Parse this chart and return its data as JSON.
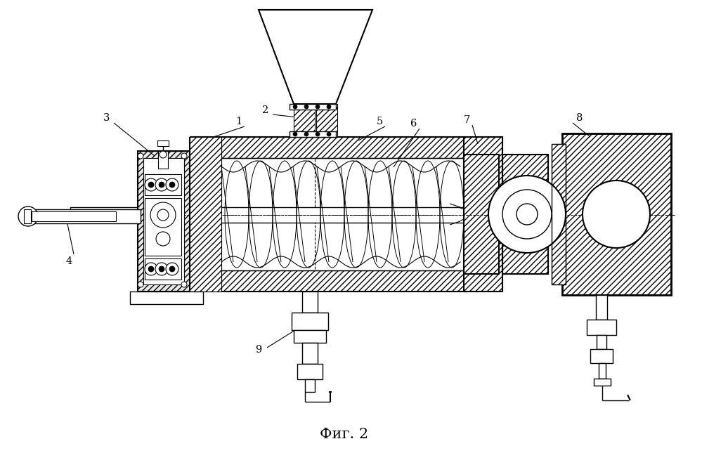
{
  "title": "Фиг. 2",
  "title_fontsize": 15,
  "bg_color": "#ffffff",
  "fig_w": 9.99,
  "fig_h": 6.72,
  "dpi": 100
}
